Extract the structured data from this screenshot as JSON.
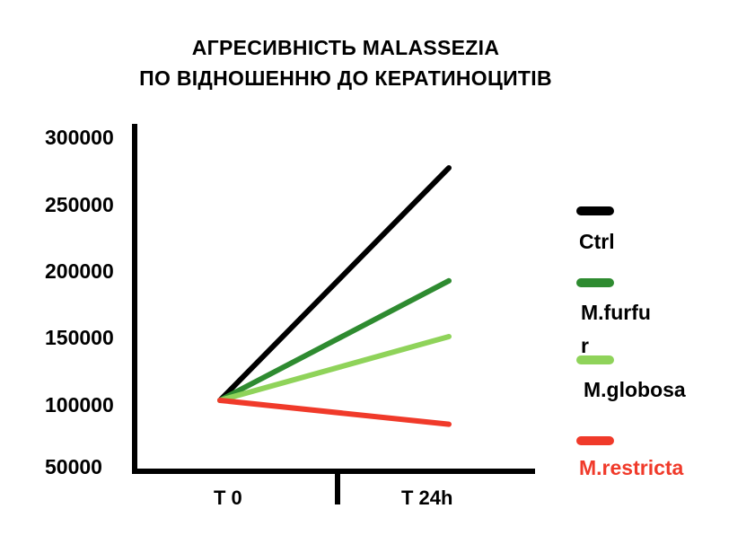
{
  "title_line1": "АГРЕСИВНІСТЬ MALASSEZIA",
  "title_line2": "ПО ВІДНОШЕННЮ ДО КЕРАТИНОЦИТІВ",
  "chart_data": {
    "type": "line",
    "title": "АГРЕСИВНІСТЬ MALASSEZIA ПО ВІДНОШЕННЮ ДО КЕРАТИНОЦИТІВ",
    "x": [
      "T 0",
      "T 24h"
    ],
    "y_tick_labels": [
      "300000",
      "250000",
      "200000",
      "150000",
      "100000",
      "50000"
    ],
    "ylim": [
      50000,
      300000
    ],
    "grid": false,
    "legend_position": "right",
    "series": [
      {
        "name": "Ctrl",
        "color": "#000000",
        "values": [
          100000,
          275000
        ]
      },
      {
        "name": "M.furfur",
        "color": "#2e8b30",
        "values": [
          100000,
          190000
        ]
      },
      {
        "name": "M.globosa",
        "color": "#8fd35a",
        "values": [
          100000,
          148000
        ]
      },
      {
        "name": "M.restricta",
        "color": "#f03a2a",
        "values": [
          100000,
          82000
        ]
      }
    ]
  },
  "legend": [
    {
      "label": "Ctrl",
      "color": "#000000",
      "text_color": "#000000"
    },
    {
      "label": "M.furfur",
      "color": "#2e8b30",
      "text_color": "#000000"
    },
    {
      "label": "M.globosa",
      "color": "#8fd35a",
      "text_color": "#000000"
    },
    {
      "label": "M.restricta",
      "color": "#f03a2a",
      "text_color": "#f03a2a"
    }
  ]
}
